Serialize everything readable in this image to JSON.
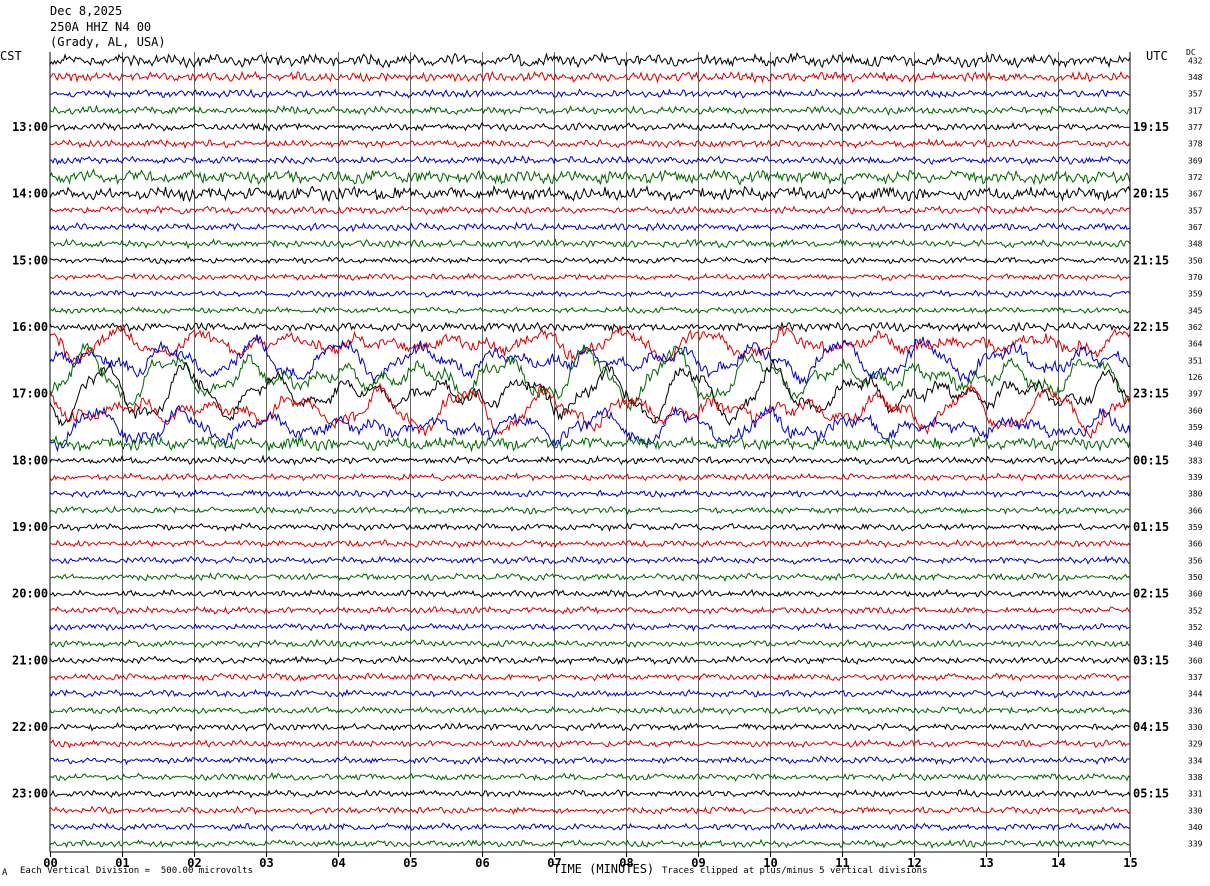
{
  "header": {
    "date": "Dec 8,2025",
    "station": "250A HHZ N4 00",
    "location": "(Grady, AL, USA)"
  },
  "left_tz": "CST",
  "right_tz": "UTC",
  "dc_label": "DC",
  "footer": {
    "scale_note": "Each Vertical Division =  500.00 microvolts",
    "clip_note": "Traces clipped at plus/minus 5 vertical divisions",
    "mark": "A"
  },
  "chart_data": {
    "type": "line",
    "xlabel": "TIME (MINUTES)",
    "x_ticks": [
      "00",
      "01",
      "02",
      "03",
      "04",
      "05",
      "06",
      "07",
      "08",
      "09",
      "10",
      "11",
      "12",
      "13",
      "14",
      "15"
    ],
    "xlim": [
      0,
      15
    ],
    "left_times": [
      "13:00",
      "14:00",
      "15:00",
      "16:00",
      "17:00",
      "18:00",
      "19:00",
      "20:00",
      "21:00",
      "22:00",
      "23:00"
    ],
    "right_times": [
      "19:15",
      "20:15",
      "21:15",
      "22:15",
      "23:15",
      "00:15",
      "01:15",
      "02:15",
      "03:15",
      "04:15",
      "05:15"
    ],
    "trace_colors": [
      "#000000",
      "#dd0000",
      "#0000cc",
      "#006600"
    ],
    "dc_offsets": [
      432,
      348,
      357,
      317,
      377,
      378,
      369,
      372,
      367,
      357,
      367,
      348,
      350,
      370,
      359,
      345,
      362,
      364,
      351,
      126,
      397,
      360,
      359,
      340,
      383,
      339,
      380,
      366,
      359,
      366,
      356,
      350,
      360,
      352,
      352,
      340,
      360,
      337,
      344,
      336,
      330,
      329,
      334,
      338,
      331,
      330,
      340,
      339
    ],
    "trace_activity": [
      1.6,
      1.3,
      1.0,
      1.0,
      1.0,
      1.0,
      1.0,
      1.8,
      1.8,
      1.0,
      1.0,
      1.0,
      0.8,
      0.8,
      0.8,
      0.8,
      1.2,
      2.5,
      3.5,
      5.0,
      5.0,
      4.0,
      3.0,
      2.0,
      1.0,
      0.9,
      0.9,
      0.9,
      0.9,
      0.9,
      0.9,
      0.9,
      0.9,
      0.9,
      0.9,
      0.9,
      0.9,
      0.9,
      0.9,
      0.9,
      0.9,
      0.9,
      0.9,
      0.9,
      0.9,
      0.9,
      0.9,
      0.9
    ]
  }
}
